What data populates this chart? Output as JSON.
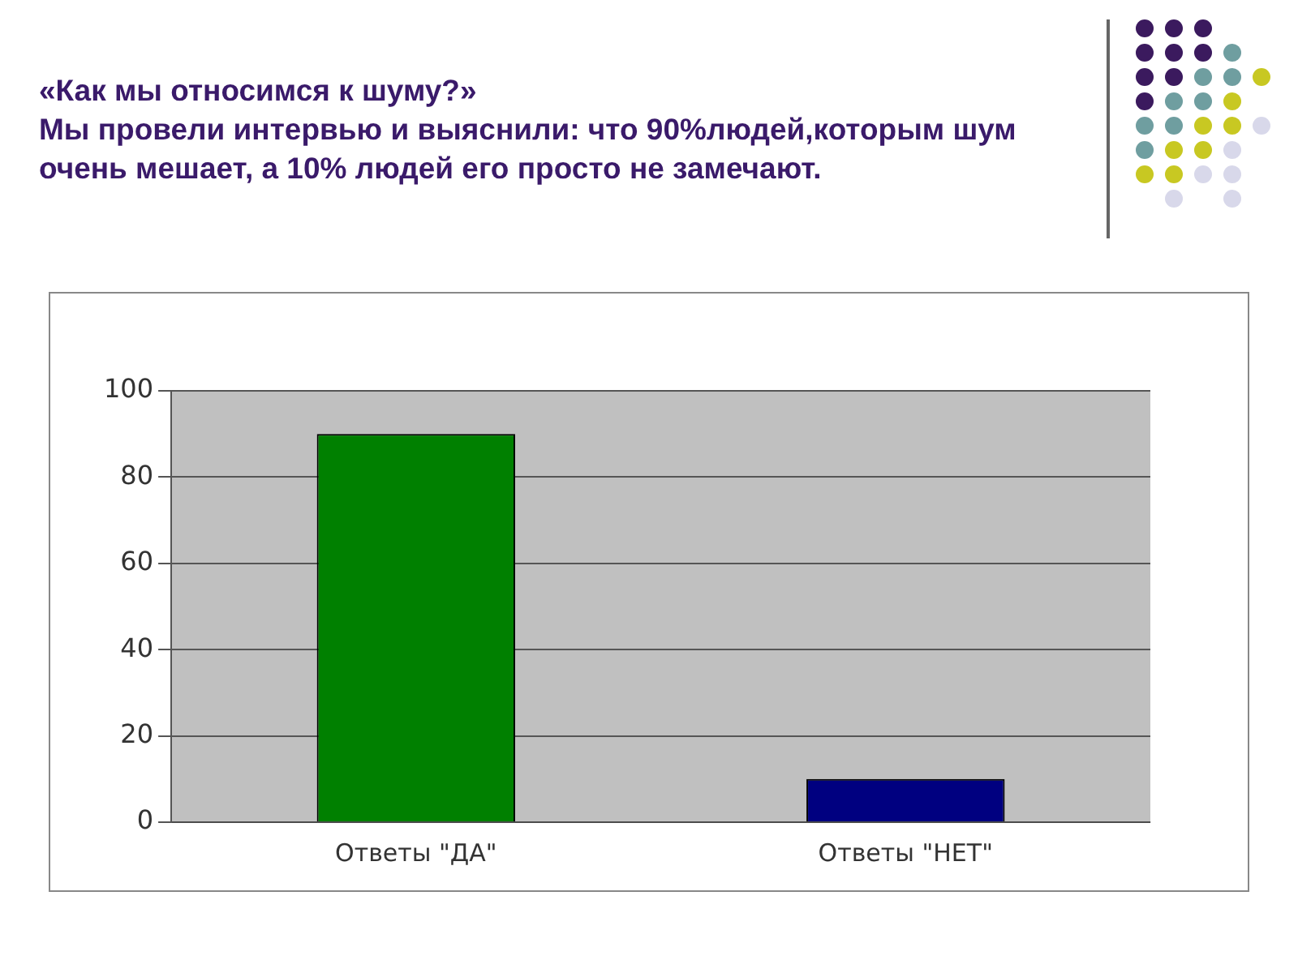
{
  "chart_data": {
    "type": "bar",
    "title": "«Как мы относимся к шуму?»",
    "subtitle": "Мы провели интервью и выяснили: что 90%людей,которым шум очень мешает, а 10% людей его просто не замечают.",
    "categories": [
      "Ответы \"ДА\"",
      "Ответы \"НЕТ\""
    ],
    "values": [
      90,
      10
    ],
    "colors": [
      "#008000",
      "#000080"
    ],
    "ylim": [
      0,
      100
    ],
    "yticks": [
      0,
      20,
      40,
      60,
      80,
      100
    ],
    "grid": "y",
    "legend": false
  }
}
